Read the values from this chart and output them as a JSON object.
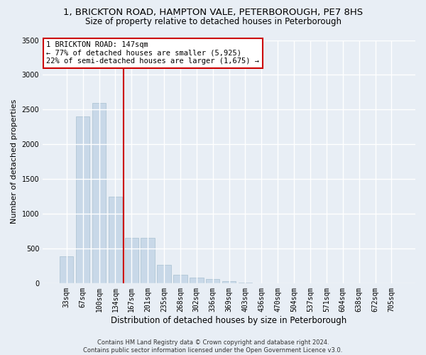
{
  "title1": "1, BRICKTON ROAD, HAMPTON VALE, PETERBOROUGH, PE7 8HS",
  "title2": "Size of property relative to detached houses in Peterborough",
  "xlabel": "Distribution of detached houses by size in Peterborough",
  "ylabel": "Number of detached properties",
  "footer1": "Contains HM Land Registry data © Crown copyright and database right 2024.",
  "footer2": "Contains public sector information licensed under the Open Government Licence v3.0.",
  "categories": [
    "33sqm",
    "67sqm",
    "100sqm",
    "134sqm",
    "167sqm",
    "201sqm",
    "235sqm",
    "268sqm",
    "302sqm",
    "336sqm",
    "369sqm",
    "403sqm",
    "436sqm",
    "470sqm",
    "504sqm",
    "537sqm",
    "571sqm",
    "604sqm",
    "638sqm",
    "672sqm",
    "705sqm"
  ],
  "values": [
    390,
    2400,
    2600,
    1250,
    650,
    650,
    260,
    120,
    75,
    55,
    30,
    10,
    2,
    0,
    0,
    0,
    0,
    0,
    0,
    0,
    0
  ],
  "bar_color": "#c8d8e8",
  "bar_edgecolor": "#a8c0d0",
  "vline_x": 3.5,
  "vline_color": "#cc0000",
  "annotation_line1": "1 BRICKTON ROAD: 147sqm",
  "annotation_line2": "← 77% of detached houses are smaller (5,925)",
  "annotation_line3": "22% of semi-detached houses are larger (1,675) →",
  "annotation_box_edgecolor": "#cc0000",
  "ylim": [
    0,
    3500
  ],
  "yticks": [
    0,
    500,
    1000,
    1500,
    2000,
    2500,
    3000,
    3500
  ],
  "background_color": "#e8eef5",
  "plot_background": "#e8eef5",
  "grid_color": "#ffffff",
  "title_fontsize": 9.5,
  "subtitle_fontsize": 8.5,
  "tick_fontsize": 7,
  "ylabel_fontsize": 8,
  "xlabel_fontsize": 8.5,
  "footer_fontsize": 6,
  "annot_fontsize": 7.5
}
